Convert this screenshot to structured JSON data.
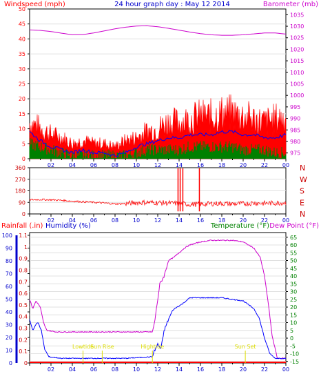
{
  "header": {
    "left_label": "Windspeed (mph)",
    "title": "24 hour graph day : May 12 2014",
    "right_label": "Barometer (mb)"
  },
  "colors": {
    "wind": "#ff0000",
    "barometer": "#cc00cc",
    "gust_line": "#0000ff",
    "avg_fill": "#008000",
    "rain": "#ff0000",
    "humidity": "#0000ff",
    "temperature": "#008000",
    "dewpoint": "#cc00cc",
    "yellow": "#dddd00",
    "grid": "#e0e0e0"
  },
  "chart_data": [
    {
      "type": "line",
      "title": "24 hour graph day : May 12 2014",
      "ylabel": "Windspeed (mph)",
      "ylabel_right": "Barometer (mb)",
      "x_ticks": [
        "02",
        "04",
        "06",
        "08",
        "10",
        "12",
        "14",
        "16",
        "18",
        "20",
        "22",
        "00"
      ],
      "y_ticks": [
        0,
        5,
        10,
        15,
        20,
        25,
        30,
        35,
        40,
        45,
        50
      ],
      "y_right_ticks": [
        975,
        980,
        985,
        990,
        995,
        1000,
        1005,
        1010,
        1015,
        1020,
        1025,
        1030,
        1035
      ],
      "ylim": [
        0,
        50
      ],
      "ylim_right": [
        972.5,
        1037.5
      ],
      "series": [
        {
          "name": "",
          "values": [
            {
              "x": 0,
              "y": 1028.4
            },
            {
              "x": 1,
              "y": 1028.2
            },
            {
              "x": 2,
              "y": 1027.7
            },
            {
              "x": 3,
              "y": 1027.0
            },
            {
              "x": 4,
              "y": 1026.3
            },
            {
              "x": 5,
              "y": 1026.4
            },
            {
              "x": 6,
              "y": 1027.1
            },
            {
              "x": 7,
              "y": 1028.0
            },
            {
              "x": 8,
              "y": 1028.9
            },
            {
              "x": 9,
              "y": 1029.6
            },
            {
              "x": 10,
              "y": 1030.1
            },
            {
              "x": 11,
              "y": 1030.2
            },
            {
              "x": 12,
              "y": 1029.8
            },
            {
              "x": 13,
              "y": 1029.1
            },
            {
              "x": 14,
              "y": 1028.3
            },
            {
              "x": 15,
              "y": 1027.5
            },
            {
              "x": 16,
              "y": 1026.8
            },
            {
              "x": 17,
              "y": 1026.3
            },
            {
              "x": 18,
              "y": 1026.1
            },
            {
              "x": 19,
              "y": 1026.1
            },
            {
              "x": 20,
              "y": 1026.3
            },
            {
              "x": 21,
              "y": 1026.7
            },
            {
              "x": 22,
              "y": 1027.1
            },
            {
              "x": 23,
              "y": 1027.1
            },
            {
              "x": 24,
              "y": 1026.6
            }
          ]
        },
        {
          "name": "",
          "values": [
            {
              "x": 0,
              "y": 12
            },
            {
              "x": 1,
              "y": 10
            },
            {
              "x": 2,
              "y": 8
            },
            {
              "x": 3,
              "y": 7
            },
            {
              "x": 4,
              "y": 5
            },
            {
              "x": 5,
              "y": 6
            },
            {
              "x": 6,
              "y": 5
            },
            {
              "x": 7,
              "y": 5
            },
            {
              "x": 8,
              "y": 4
            },
            {
              "x": 9,
              "y": 6
            },
            {
              "x": 10,
              "y": 7
            },
            {
              "x": 11,
              "y": 9
            },
            {
              "x": 12,
              "y": 10
            },
            {
              "x": 13,
              "y": 12
            },
            {
              "x": 14,
              "y": 12
            },
            {
              "x": 15,
              "y": 13
            },
            {
              "x": 16,
              "y": 14
            },
            {
              "x": 17,
              "y": 14
            },
            {
              "x": 18,
              "y": 15
            },
            {
              "x": 19,
              "y": 15
            },
            {
              "x": 20,
              "y": 14
            },
            {
              "x": 21,
              "y": 13
            },
            {
              "x": 22,
              "y": 12
            },
            {
              "x": 23,
              "y": 13
            },
            {
              "x": 24,
              "y": 14
            }
          ]
        },
        {
          "name": "",
          "values": [
            {
              "x": 0,
              "y": 9
            },
            {
              "x": 1,
              "y": 6
            },
            {
              "x": 2,
              "y": 4
            },
            {
              "x": 3,
              "y": 3
            },
            {
              "x": 4,
              "y": 2
            },
            {
              "x": 5,
              "y": 3
            },
            {
              "x": 6,
              "y": 2
            },
            {
              "x": 7,
              "y": 2
            },
            {
              "x": 8,
              "y": 1
            },
            {
              "x": 9,
              "y": 2
            },
            {
              "x": 10,
              "y": 4
            },
            {
              "x": 11,
              "y": 5
            },
            {
              "x": 12,
              "y": 6
            },
            {
              "x": 13,
              "y": 7
            },
            {
              "x": 14,
              "y": 7
            },
            {
              "x": 15,
              "y": 8
            },
            {
              "x": 16,
              "y": 8
            },
            {
              "x": 17,
              "y": 8
            },
            {
              "x": 18,
              "y": 9
            },
            {
              "x": 19,
              "y": 9
            },
            {
              "x": 20,
              "y": 8
            },
            {
              "x": 21,
              "y": 8
            },
            {
              "x": 22,
              "y": 7
            },
            {
              "x": 23,
              "y": 7
            },
            {
              "x": 24,
              "y": 8
            }
          ]
        },
        {
          "name": "",
          "values": [
            {
              "x": 0,
              "y": 5
            },
            {
              "x": 1,
              "y": 4
            },
            {
              "x": 2,
              "y": 3
            },
            {
              "x": 3,
              "y": 2
            },
            {
              "x": 4,
              "y": 1
            },
            {
              "x": 5,
              "y": 1
            },
            {
              "x": 6,
              "y": 1
            },
            {
              "x": 7,
              "y": 1
            },
            {
              "x": 8,
              "y": 1
            },
            {
              "x": 9,
              "y": 1
            },
            {
              "x": 10,
              "y": 2
            },
            {
              "x": 11,
              "y": 3
            },
            {
              "x": 12,
              "y": 3
            },
            {
              "x": 13,
              "y": 3
            },
            {
              "x": 14,
              "y": 3
            },
            {
              "x": 15,
              "y": 4
            },
            {
              "x": 16,
              "y": 4
            },
            {
              "x": 17,
              "y": 4
            },
            {
              "x": 18,
              "y": 4
            },
            {
              "x": 19,
              "y": 4
            },
            {
              "x": 20,
              "y": 3
            },
            {
              "x": 21,
              "y": 3
            },
            {
              "x": 22,
              "y": 3
            },
            {
              "x": 23,
              "y": 2
            },
            {
              "x": 24,
              "y": 2
            }
          ]
        }
      ]
    },
    {
      "type": "line",
      "title": "",
      "x_ticks": [
        "02",
        "04",
        "06",
        "08",
        "10",
        "12",
        "14",
        "16",
        "18",
        "20",
        "22",
        "00"
      ],
      "y_ticks": [
        0,
        90,
        180,
        270,
        360
      ],
      "y_right_ticks": [
        "N",
        "W",
        "S",
        "E",
        "N"
      ],
      "ylim": [
        0,
        360
      ],
      "series": [
        {
          "name": "",
          "values": [
            {
              "x": 0,
              "y": 110
            },
            {
              "x": 1,
              "y": 112
            },
            {
              "x": 2,
              "y": 110
            },
            {
              "x": 3,
              "y": 106
            },
            {
              "x": 4,
              "y": 100
            },
            {
              "x": 5,
              "y": 95
            },
            {
              "x": 6,
              "y": 90
            },
            {
              "x": 7,
              "y": 85
            },
            {
              "x": 8,
              "y": 78
            },
            {
              "x": 9,
              "y": 80
            },
            {
              "x": 10,
              "y": 88
            },
            {
              "x": 11,
              "y": 90
            },
            {
              "x": 12,
              "y": 88
            },
            {
              "x": 13,
              "y": 85
            },
            {
              "x": 14,
              "y": 80
            },
            {
              "x": 15,
              "y": 75
            },
            {
              "x": 16,
              "y": 75
            },
            {
              "x": 17,
              "y": 80
            },
            {
              "x": 18,
              "y": 82
            },
            {
              "x": 19,
              "y": 78
            },
            {
              "x": 20,
              "y": 80
            },
            {
              "x": 21,
              "y": 85
            },
            {
              "x": 22,
              "y": 82
            },
            {
              "x": 23,
              "y": 85
            },
            {
              "x": 24,
              "y": 88
            }
          ]
        }
      ]
    },
    {
      "type": "line",
      "ylabel": "Rainfall (.in)",
      "ylabel2": "Humidity (%)",
      "ylabel_right": "Temperature (°F)",
      "ylabel_right2": "Dew Point (°F)",
      "x_ticks": [
        "02",
        "04",
        "06",
        "08",
        "10",
        "12",
        "14",
        "16",
        "18",
        "20",
        "22",
        "00"
      ],
      "y_ticks": [
        0,
        10,
        20,
        30,
        40,
        50,
        60,
        70,
        80,
        90,
        100
      ],
      "y_rain_ticks": [
        "0",
        "0.1",
        "0.2",
        "0.3",
        "0.4",
        "0.5",
        "0.6",
        "0.7",
        "0.8",
        "0.9",
        "1",
        "1.1"
      ],
      "y_right_ticks": [
        -15,
        -10,
        -5,
        0,
        5,
        10,
        15,
        20,
        25,
        30,
        35,
        40,
        45,
        50,
        55,
        60,
        65
      ],
      "ylim_temp": [
        -16,
        68
      ],
      "annotations": [
        {
          "text": "Lowtide",
          "x": 5.0
        },
        {
          "text": "Sun Rise",
          "x": 6.8
        },
        {
          "text": "Hightide",
          "x": 11.5
        },
        {
          "text": "Sun Set",
          "x": 20.2
        }
      ],
      "series": [
        {
          "name": "",
          "values": [
            {
              "x": 0,
              "y": 0
            },
            {
              "x": 24,
              "y": 0
            }
          ]
        },
        {
          "name": "",
          "values": [
            {
              "x": 0,
              "y": 25
            },
            {
              "x": 0.3,
              "y": 19
            },
            {
              "x": 0.6,
              "y": 24
            },
            {
              "x": 1,
              "y": 20
            },
            {
              "x": 1.3,
              "y": 10
            },
            {
              "x": 1.6,
              "y": 5
            },
            {
              "x": 2.5,
              "y": 4
            },
            {
              "x": 5,
              "y": 4
            },
            {
              "x": 8,
              "y": 4
            },
            {
              "x": 11.5,
              "y": 4
            },
            {
              "x": 11.7,
              "y": 10
            },
            {
              "x": 12,
              "y": 25
            },
            {
              "x": 12.2,
              "y": 35
            },
            {
              "x": 12.6,
              "y": 40
            },
            {
              "x": 13,
              "y": 50
            },
            {
              "x": 13.5,
              "y": 52
            },
            {
              "x": 14,
              "y": 55
            },
            {
              "x": 14.5,
              "y": 58
            },
            {
              "x": 15,
              "y": 60
            },
            {
              "x": 16,
              "y": 62
            },
            {
              "x": 17,
              "y": 63
            },
            {
              "x": 18,
              "y": 63
            },
            {
              "x": 19,
              "y": 63
            },
            {
              "x": 20,
              "y": 62
            },
            {
              "x": 21,
              "y": 58
            },
            {
              "x": 21.6,
              "y": 52
            },
            {
              "x": 22,
              "y": 40
            },
            {
              "x": 22.4,
              "y": 20
            },
            {
              "x": 22.7,
              "y": 2
            },
            {
              "x": 23.2,
              "y": -13
            },
            {
              "x": 24,
              "y": -13
            }
          ]
        },
        {
          "name": "",
          "values": [
            {
              "x": 0,
              "y": 12
            },
            {
              "x": 0.3,
              "y": 5
            },
            {
              "x": 0.6,
              "y": 9
            },
            {
              "x": 0.8,
              "y": 10
            },
            {
              "x": 1.1,
              "y": 5
            },
            {
              "x": 1.4,
              "y": -7
            },
            {
              "x": 1.8,
              "y": -12
            },
            {
              "x": 3,
              "y": -13
            },
            {
              "x": 6,
              "y": -13
            },
            {
              "x": 9,
              "y": -13
            },
            {
              "x": 11.5,
              "y": -12
            },
            {
              "x": 11.7,
              "y": -8
            },
            {
              "x": 12,
              "y": -4
            },
            {
              "x": 12.3,
              "y": -7
            },
            {
              "x": 12.6,
              "y": 5
            },
            {
              "x": 13,
              "y": 12
            },
            {
              "x": 13.4,
              "y": 18
            },
            {
              "x": 13.8,
              "y": 20
            },
            {
              "x": 14.3,
              "y": 22
            },
            {
              "x": 15,
              "y": 26
            },
            {
              "x": 16,
              "y": 26
            },
            {
              "x": 17,
              "y": 26
            },
            {
              "x": 18,
              "y": 26
            },
            {
              "x": 19,
              "y": 25
            },
            {
              "x": 20,
              "y": 24
            },
            {
              "x": 21,
              "y": 19
            },
            {
              "x": 21.5,
              "y": 13
            },
            {
              "x": 22,
              "y": 0
            },
            {
              "x": 22.5,
              "y": -10
            },
            {
              "x": 23,
              "y": -13
            },
            {
              "x": 24,
              "y": -13
            }
          ]
        }
      ]
    }
  ]
}
